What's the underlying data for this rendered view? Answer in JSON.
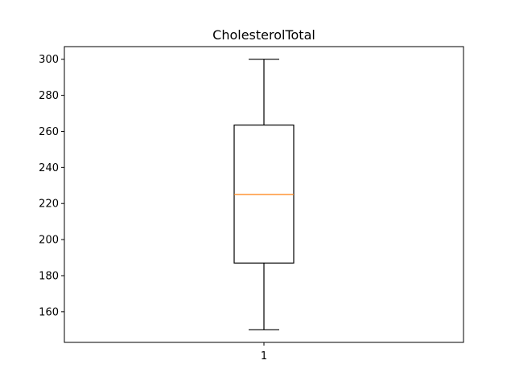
{
  "chart_data": {
    "type": "box",
    "title": "CholesterolTotal",
    "xlabel": "",
    "ylabel": "",
    "categories": [
      "1"
    ],
    "ylim": [
      143,
      307
    ],
    "yticks": [
      160,
      180,
      200,
      220,
      240,
      260,
      280,
      300
    ],
    "grid": false,
    "boxes": [
      {
        "category": "1",
        "whisker_low": 150,
        "q1": 187,
        "median": 225,
        "q3": 263.5,
        "whisker_high": 300
      }
    ],
    "colors": {
      "box": "#000000",
      "median": "#ff7f0e",
      "axes": "#000000"
    }
  }
}
